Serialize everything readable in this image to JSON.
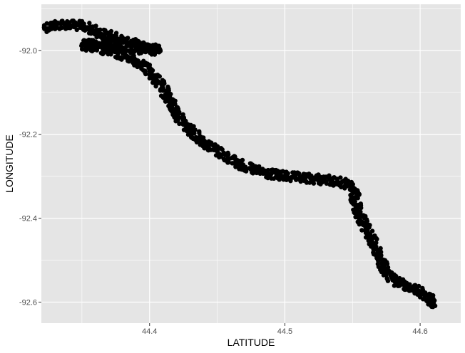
{
  "chart_data": {
    "type": "scatter",
    "title": "",
    "xlabel": "LATITUDE",
    "ylabel": "LONGITUDE",
    "xlim": [
      44.32,
      44.63
    ],
    "ylim": [
      -92.65,
      -91.89
    ],
    "x_ticks": [
      44.4,
      44.5,
      44.6
    ],
    "x_tick_labels": [
      "44.4",
      "44.5",
      "44.6"
    ],
    "y_ticks": [
      -92.0,
      -92.2,
      -92.4,
      -92.6
    ],
    "y_tick_labels": [
      "-92.0",
      "-92.2",
      "-92.4",
      "-92.6"
    ],
    "grid": true,
    "legend": "none",
    "colors": {
      "panel": "#e5e5e5",
      "grid": "#ffffff",
      "points": "#000000"
    },
    "series": [
      {
        "values": [
          [
            44.322,
            -91.945
          ],
          [
            44.33,
            -91.94
          ],
          [
            44.338,
            -91.937
          ],
          [
            44.346,
            -91.94
          ],
          [
            44.354,
            -91.945
          ],
          [
            44.362,
            -91.957
          ],
          [
            44.37,
            -91.965
          ],
          [
            44.378,
            -91.974
          ],
          [
            44.386,
            -91.982
          ],
          [
            44.394,
            -91.99
          ],
          [
            44.402,
            -91.996
          ],
          [
            44.408,
            -92.0
          ],
          [
            44.35,
            -91.985
          ],
          [
            44.36,
            -91.995
          ],
          [
            44.372,
            -92.003
          ],
          [
            44.384,
            -92.015
          ],
          [
            44.393,
            -92.03
          ],
          [
            44.4,
            -92.05
          ],
          [
            44.405,
            -92.07
          ],
          [
            44.41,
            -92.09
          ],
          [
            44.412,
            -92.105
          ],
          [
            44.415,
            -92.12
          ],
          [
            44.418,
            -92.14
          ],
          [
            44.422,
            -92.16
          ],
          [
            44.427,
            -92.18
          ],
          [
            44.432,
            -92.195
          ],
          [
            44.437,
            -92.21
          ],
          [
            44.443,
            -92.225
          ],
          [
            44.45,
            -92.24
          ],
          [
            44.458,
            -92.255
          ],
          [
            44.466,
            -92.27
          ],
          [
            44.475,
            -92.283
          ],
          [
            44.485,
            -92.292
          ],
          [
            44.495,
            -92.298
          ],
          [
            44.505,
            -92.302
          ],
          [
            44.515,
            -92.305
          ],
          [
            44.525,
            -92.307
          ],
          [
            44.535,
            -92.31
          ],
          [
            44.545,
            -92.318
          ],
          [
            44.55,
            -92.33
          ],
          [
            44.552,
            -92.35
          ],
          [
            44.553,
            -92.37
          ],
          [
            44.555,
            -92.39
          ],
          [
            44.558,
            -92.41
          ],
          [
            44.561,
            -92.43
          ],
          [
            44.564,
            -92.45
          ],
          [
            44.567,
            -92.47
          ],
          [
            44.57,
            -92.49
          ],
          [
            44.572,
            -92.51
          ],
          [
            44.575,
            -92.53
          ],
          [
            44.58,
            -92.548
          ],
          [
            44.59,
            -92.56
          ],
          [
            44.6,
            -92.575
          ],
          [
            44.607,
            -92.59
          ],
          [
            44.61,
            -92.6
          ],
          [
            44.606,
            -92.605
          ]
        ]
      }
    ]
  }
}
